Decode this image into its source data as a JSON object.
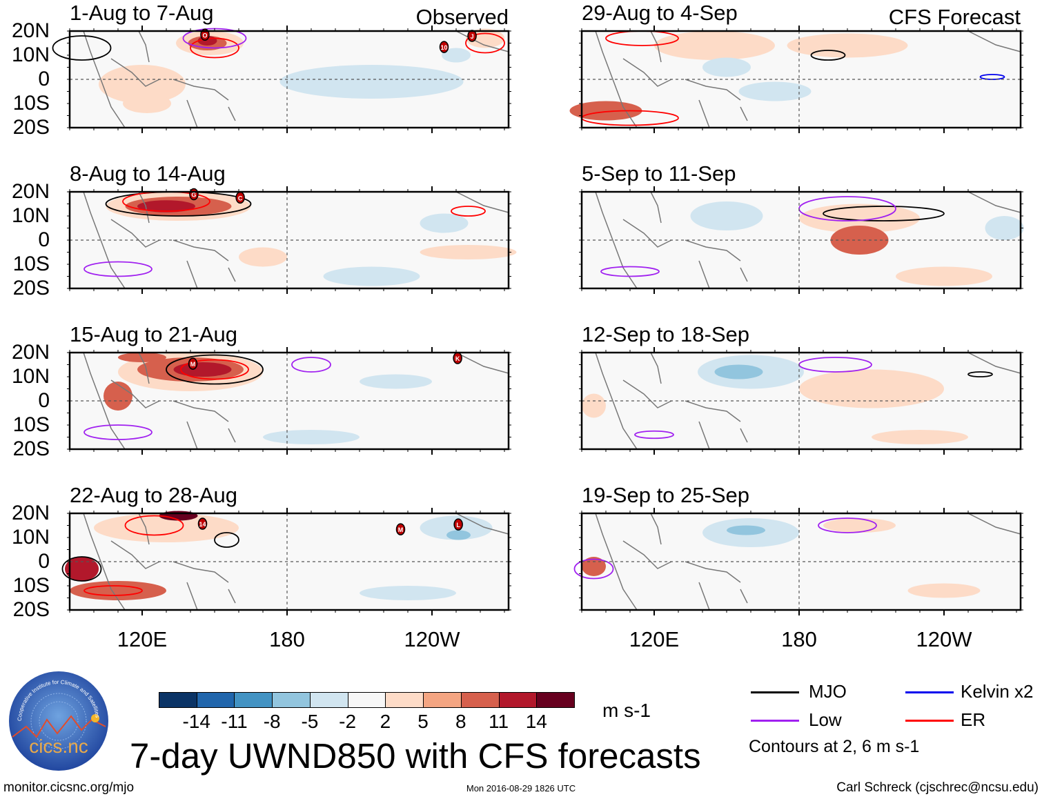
{
  "headers": {
    "observed": "Observed",
    "forecast": "CFS Forecast"
  },
  "lat_labels": [
    "20N",
    "10N",
    "0",
    "10S",
    "20S"
  ],
  "lon_labels": [
    "120E",
    "180",
    "120W"
  ],
  "panels": [
    {
      "title": "1-Aug to 7-Aug",
      "group": "observed",
      "storms": [
        {
          "label": "O",
          "lon": 146,
          "lat": 18.5
        },
        {
          "label": "J",
          "lon": 256.6,
          "lat": 18
        },
        {
          "label": "10",
          "lon": 245,
          "lat": 13.4
        }
      ]
    },
    {
      "title": "8-Aug to 14-Aug",
      "group": "observed",
      "storms": [
        {
          "label": "G",
          "lon": 141.4,
          "lat": 19
        },
        {
          "label": "C",
          "lon": 160.6,
          "lat": 17.6
        }
      ]
    },
    {
      "title": "15-Aug to 21-Aug",
      "group": "observed",
      "storms": [
        {
          "label": "M",
          "lon": 141,
          "lat": 15.4
        },
        {
          "label": "K",
          "lon": 250.6,
          "lat": 17.7
        }
      ]
    },
    {
      "title": "22-Aug to 28-Aug",
      "group": "observed",
      "storms": [
        {
          "label": "14",
          "lon": 145,
          "lat": 15.7
        },
        {
          "label": "M",
          "lon": 227,
          "lat": 13.4
        },
        {
          "label": "L",
          "lon": 250.9,
          "lat": 15.4
        }
      ]
    },
    {
      "title": "29-Aug to 4-Sep",
      "group": "forecast",
      "storms": []
    },
    {
      "title": "5-Sep to 11-Sep",
      "group": "forecast",
      "storms": []
    },
    {
      "title": "12-Sep to 18-Sep",
      "group": "forecast",
      "storms": []
    },
    {
      "title": "19-Sep to 25-Sep",
      "group": "forecast",
      "storms": []
    }
  ],
  "colorbar": {
    "colors": [
      "#0b3466",
      "#2166ac",
      "#4393c3",
      "#92c5de",
      "#d1e5f0",
      "#f7f7f7",
      "#fddbc7",
      "#f4a582",
      "#d6604d",
      "#b2182b",
      "#67001f"
    ],
    "levels": [
      "-14",
      "-11",
      "-8",
      "-5",
      "-2",
      "2",
      "5",
      "8",
      "11",
      "14"
    ],
    "units": "m s-1"
  },
  "legend": {
    "items": [
      {
        "label": "MJO",
        "color": "#000000"
      },
      {
        "label": "Kelvin x2",
        "color": "#0000ee"
      },
      {
        "label": "Low",
        "color": "#a020f0"
      },
      {
        "label": "ER",
        "color": "#ff0000"
      }
    ],
    "note": "Contours at 2, 6 m s-1"
  },
  "title": "7-day UWND850 with CFS forecasts",
  "logo": {
    "text": "cics.nc",
    "ring": "Cooperative Institute for Climate and Satellites"
  },
  "footer": {
    "url": "monitor.cicsnc.org/mjo",
    "timestamp": "Mon 2016-08-29 1826 UTC",
    "author": "Carl Schreck (cjschrec@ncsu.edu)"
  },
  "chart_data": {
    "type": "heatmap",
    "title": "7-day UWND850 with CFS forecasts",
    "variable": "850-hPa zonal wind anomaly",
    "units": "m s-1",
    "xlim": [
      "90E",
      "90W"
    ],
    "ylim": [
      "20S",
      "20N"
    ],
    "xticks": [
      "120E",
      "180",
      "120W"
    ],
    "yticks": [
      "20N",
      "10N",
      "0",
      "10S",
      "20S"
    ],
    "contour_levels": [
      2,
      6
    ],
    "legend_placement": "bottom-right"
  }
}
